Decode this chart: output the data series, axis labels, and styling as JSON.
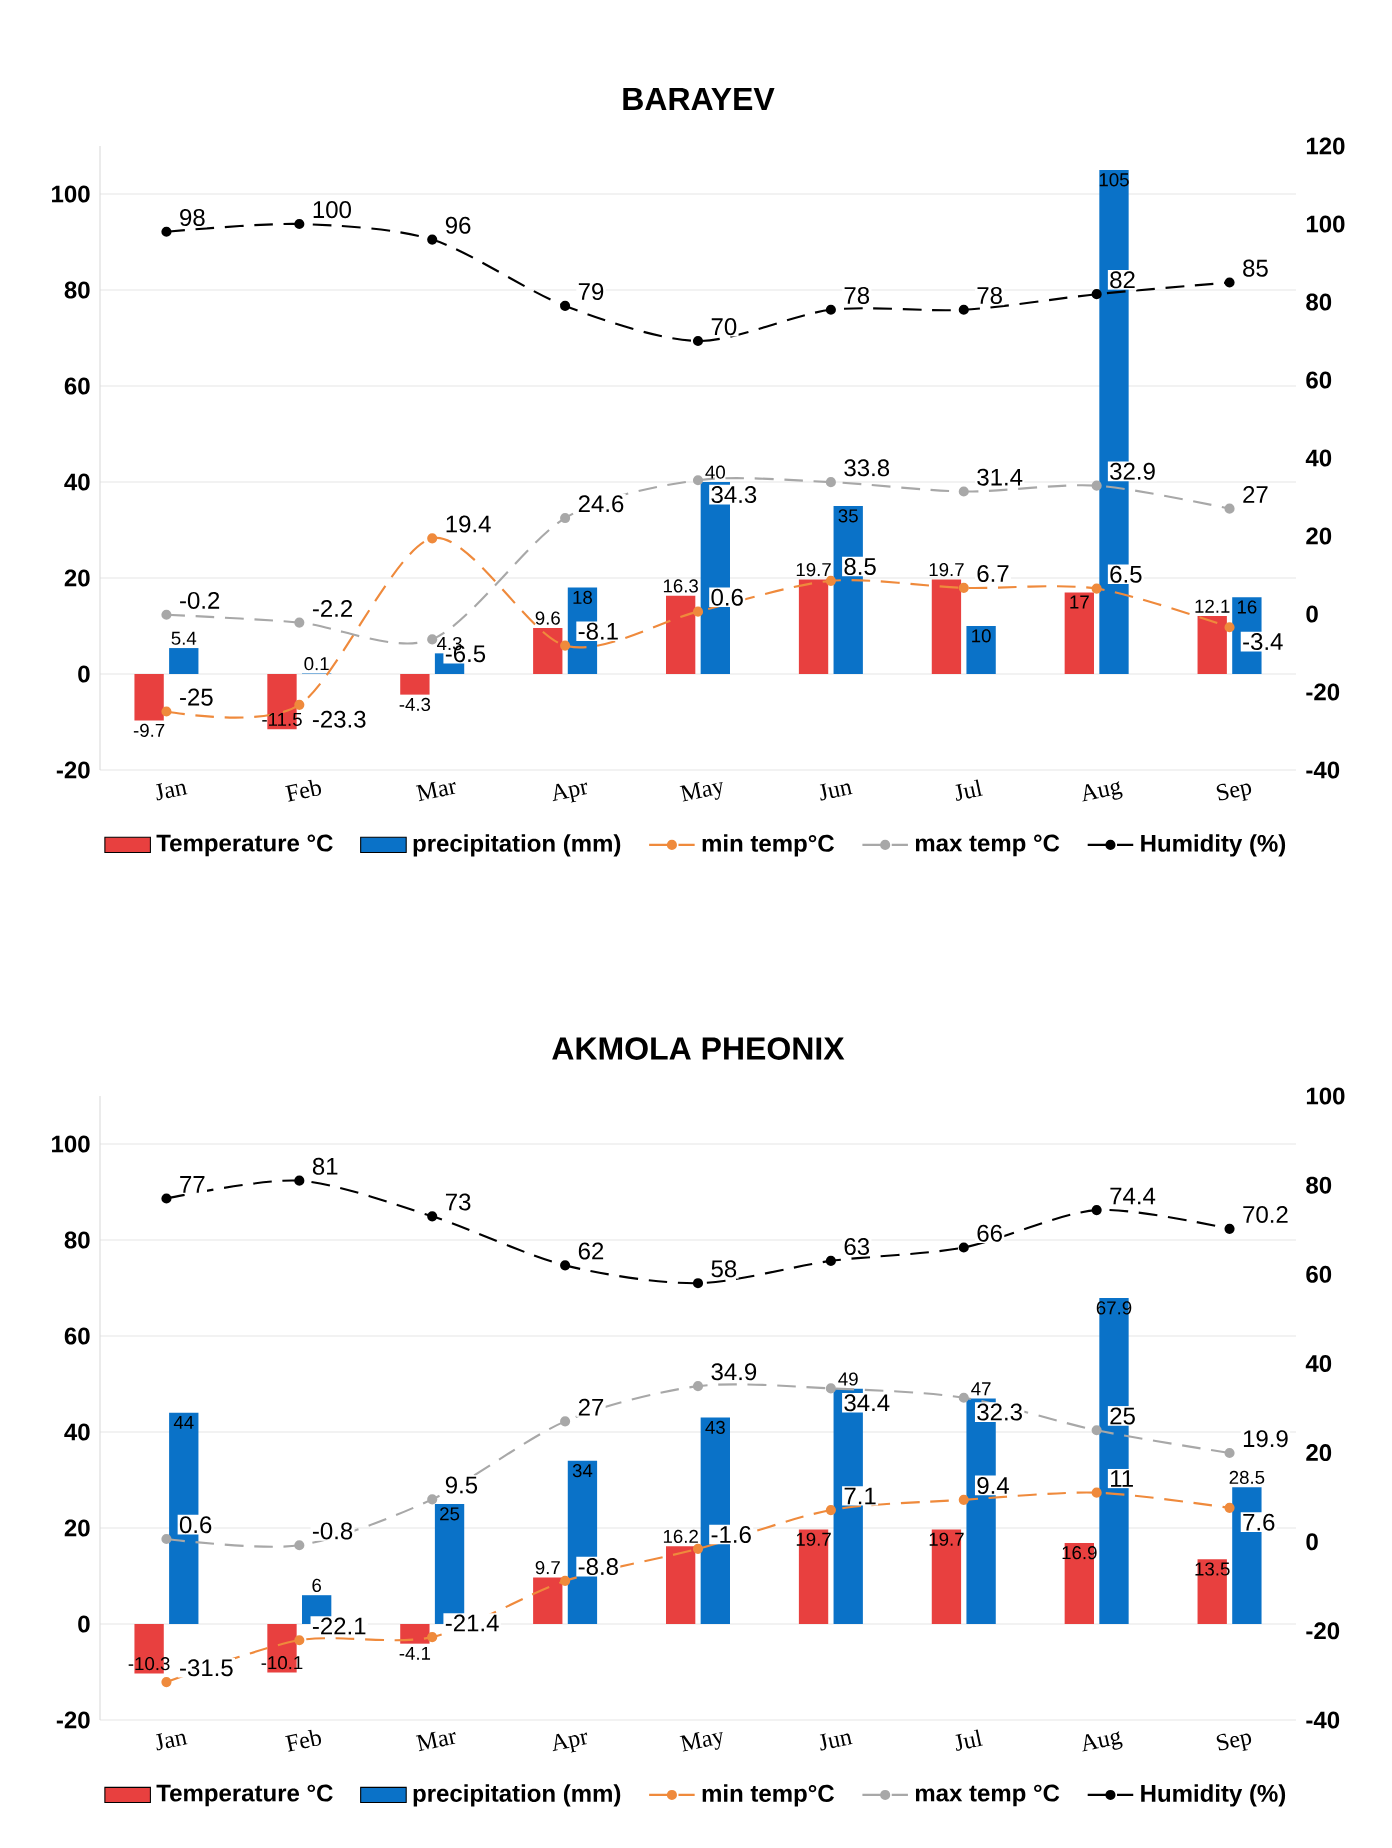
{
  "chart_data": [
    {
      "type": "bar",
      "title": "BARAYEV",
      "categories": [
        "Jan",
        "Feb",
        "Mar",
        "Apr",
        "May",
        "Jun",
        "Jul",
        "Aug",
        "Sep"
      ],
      "series": [
        {
          "name": "Temperature °C",
          "color": "#e8403f",
          "values": [
            -9.7,
            -11.5,
            -4.3,
            9.6,
            16.3,
            19.7,
            19.7,
            17,
            12.1
          ]
        },
        {
          "name": "precipitation (mm)",
          "color": "#0a72c8",
          "values": [
            5.4,
            0.1,
            4.3,
            18,
            40,
            35,
            10,
            105,
            16
          ]
        },
        {
          "name": "min temp°C",
          "type": "line",
          "axis": "y2",
          "color": "#ef8a3c",
          "values": [
            -25,
            -23.3,
            19.4,
            -8.1,
            0.6,
            8.5,
            6.7,
            6.5,
            -3.4
          ]
        },
        {
          "name": "max temp °C",
          "type": "line",
          "axis": "y2",
          "color": "#a8a8a8",
          "values": [
            -0.2,
            -2.2,
            -6.5,
            24.6,
            34.3,
            33.8,
            31.4,
            32.9,
            27
          ]
        },
        {
          "name": "Humidity (%)",
          "type": "line",
          "axis": "y2",
          "color": "#000000",
          "values": [
            98,
            100,
            96,
            79,
            70,
            78,
            78,
            82,
            85
          ]
        }
      ],
      "ylim": [
        -20,
        110
      ],
      "yticks": [
        -20,
        0,
        20,
        40,
        60,
        80,
        100
      ],
      "y2lim": [
        -40,
        120
      ],
      "y2ticks": [
        -40,
        -20,
        0,
        20,
        40,
        60,
        80,
        100,
        120
      ],
      "grid": "y",
      "legend": "bottom",
      "marker": "circle",
      "line_style": "dashed",
      "data_labels": true
    },
    {
      "type": "bar",
      "title": "AKMOLA PHEONIX",
      "categories": [
        "Jan",
        "Feb",
        "Mar",
        "Apr",
        "May",
        "Jun",
        "Jul",
        "Aug",
        "Sep"
      ],
      "series": [
        {
          "name": "Temperature °C",
          "color": "#e8403f",
          "values": [
            -10.3,
            -10.1,
            -4.1,
            9.7,
            16.2,
            19.7,
            19.7,
            16.9,
            13.5
          ]
        },
        {
          "name": "precipitation (mm)",
          "color": "#0a72c8",
          "values": [
            44,
            6,
            25,
            34,
            43,
            49,
            47,
            67.9,
            28.5
          ]
        },
        {
          "name": "min temp°C",
          "type": "line",
          "axis": "y2",
          "color": "#ef8a3c",
          "values": [
            -31.5,
            -22.1,
            -21.4,
            -8.8,
            -1.6,
            7.1,
            9.4,
            11,
            7.6
          ]
        },
        {
          "name": "max temp °C",
          "type": "line",
          "axis": "y2",
          "color": "#a8a8a8",
          "values": [
            0.6,
            -0.8,
            9.5,
            27,
            34.9,
            34.4,
            32.3,
            25,
            19.9
          ]
        },
        {
          "name": "Humidity (%)",
          "type": "line",
          "axis": "y2",
          "color": "#000000",
          "values": [
            77,
            81,
            73,
            62,
            58,
            63,
            66,
            74.4,
            70.2
          ]
        }
      ],
      "ylim": [
        -20,
        110
      ],
      "yticks": [
        -20,
        0,
        20,
        40,
        60,
        80,
        100
      ],
      "y2lim": [
        -40,
        100
      ],
      "y2ticks": [
        -40,
        -20,
        0,
        20,
        40,
        60,
        80,
        100
      ],
      "grid": "y",
      "legend": "bottom",
      "marker": "circle",
      "line_style": "dashed",
      "data_labels": true
    }
  ]
}
